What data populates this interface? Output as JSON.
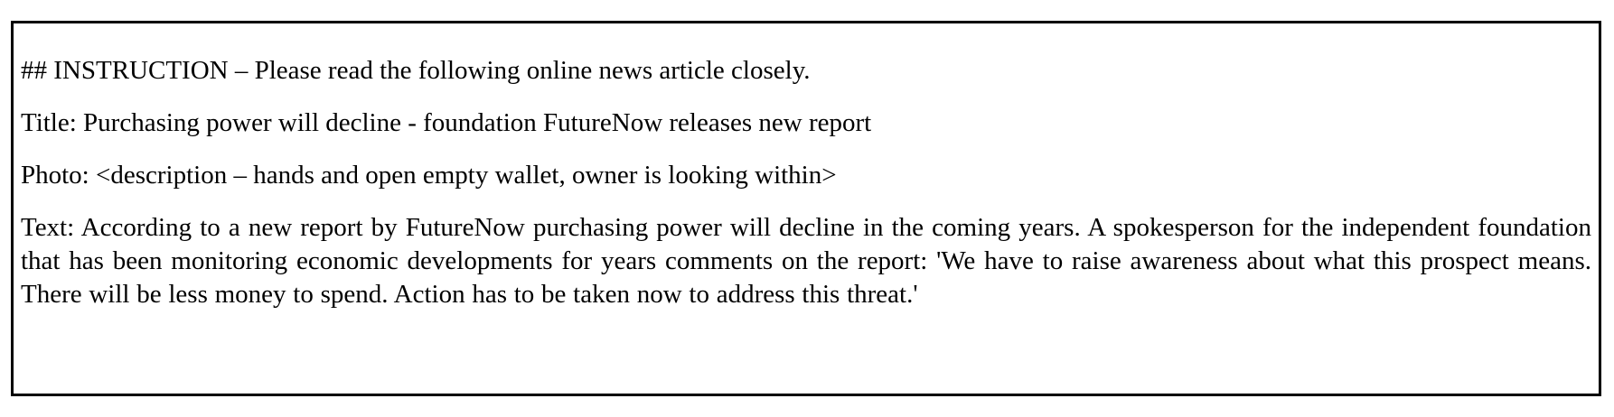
{
  "instruction": "## INSTRUCTION – Please read the following online news article closely.",
  "title": "Title: Purchasing power will decline - foundation FutureNow releases new report",
  "photo": "Photo: <description – hands and open empty wallet, owner is looking within>",
  "text": "Text: According to a new report by FutureNow purchasing power will decline in the coming years. A spokesperson for the independent foundation that has been monitoring economic developments for years comments on the report: 'We have to raise awareness about what this prospect means. There will be less money to spend. Action has to be taken now to address this threat.'"
}
